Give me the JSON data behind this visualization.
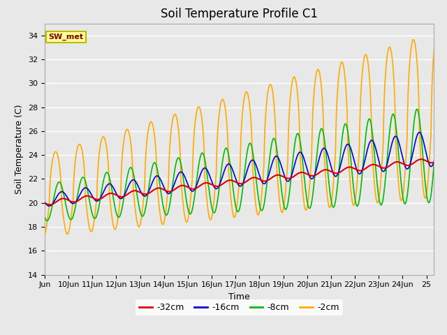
{
  "title": "Soil Temperature Profile C1",
  "xlabel": "Time",
  "ylabel": "Soil Temperature (C)",
  "ylim": [
    14,
    35
  ],
  "yticks": [
    14,
    16,
    18,
    20,
    22,
    24,
    26,
    28,
    30,
    32,
    34
  ],
  "xlim_start": 9.0,
  "xlim_end": 25.3,
  "xtick_labels": [
    "Jun",
    "10Jun",
    "11Jun",
    "12Jun",
    "13Jun",
    "14Jun",
    "15Jun",
    "16Jun",
    "17Jun",
    "18Jun",
    "19Jun",
    "20Jun",
    "21Jun",
    "22Jun",
    "23Jun",
    "24Jun",
    "25"
  ],
  "xtick_positions": [
    9.0,
    10.0,
    11.0,
    12.0,
    13.0,
    14.0,
    15.0,
    16.0,
    17.0,
    18.0,
    19.0,
    20.0,
    21.0,
    22.0,
    23.0,
    24.0,
    25.0
  ],
  "legend_labels": [
    "-32cm",
    "-16cm",
    "-8cm",
    "-2cm"
  ],
  "legend_colors": [
    "#dd0000",
    "#0000dd",
    "#00bb00",
    "#ffaa00"
  ],
  "line_colors": {
    "32cm": "#dd0000",
    "16cm": "#0000dd",
    "8cm": "#00bb00",
    "2cm": "#ffaa00"
  },
  "annotation_text": "SW_met",
  "annotation_color": "#880000",
  "annotation_bg": "#ffff99",
  "annotation_border": "#bbbb00",
  "background_color": "#e8e8e8",
  "grid_color": "#ffffff",
  "title_fontsize": 12,
  "axis_fontsize": 9,
  "tick_fontsize": 8,
  "legend_fontsize": 9
}
